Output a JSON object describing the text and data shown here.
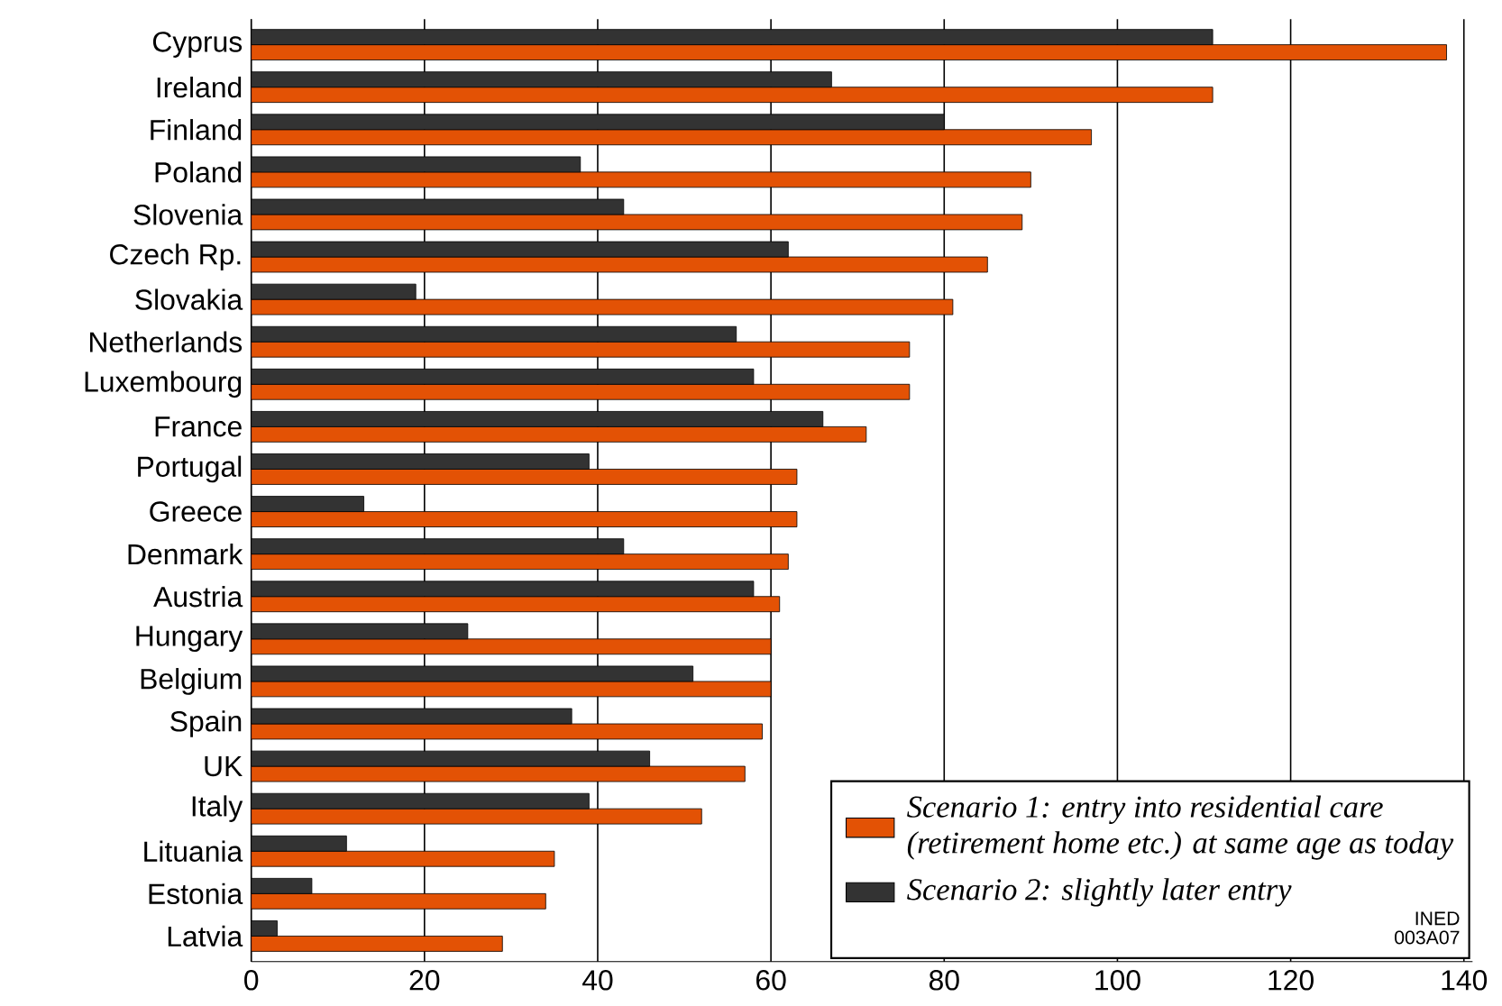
{
  "chart_data": {
    "type": "bar",
    "orientation": "horizontal",
    "categories": [
      "Cyprus",
      "Ireland",
      "Finland",
      "Poland",
      "Slovenia",
      "Czech Rp.",
      "Slovakia",
      "Netherlands",
      "Luxembourg",
      "France",
      "Portugal",
      "Greece",
      "Denmark",
      "Austria",
      "Hungary",
      "Belgium",
      "Spain",
      "UK",
      "Italy",
      "Lituania",
      "Estonia",
      "Latvia"
    ],
    "series": [
      {
        "name": "Scenario 1: entry into residential care (retirement home etc.) at same age as today",
        "color": "#e35205",
        "values": [
          138,
          111,
          97,
          90,
          89,
          85,
          81,
          76,
          76,
          71,
          63,
          63,
          62,
          61,
          60,
          60,
          59,
          57,
          52,
          35,
          34,
          29
        ]
      },
      {
        "name": "Scenario 2: slightly later entry",
        "color": "#333333",
        "values": [
          111,
          67,
          80,
          38,
          43,
          62,
          19,
          56,
          58,
          66,
          39,
          13,
          43,
          58,
          25,
          51,
          37,
          46,
          39,
          11,
          7,
          3
        ]
      }
    ],
    "xlim": [
      0,
      141
    ],
    "xticks": [
      0,
      20,
      40,
      60,
      80,
      100,
      120,
      140
    ],
    "grid": "x",
    "legend": "bottom right",
    "annotations": [
      "INED",
      "003A07"
    ]
  }
}
